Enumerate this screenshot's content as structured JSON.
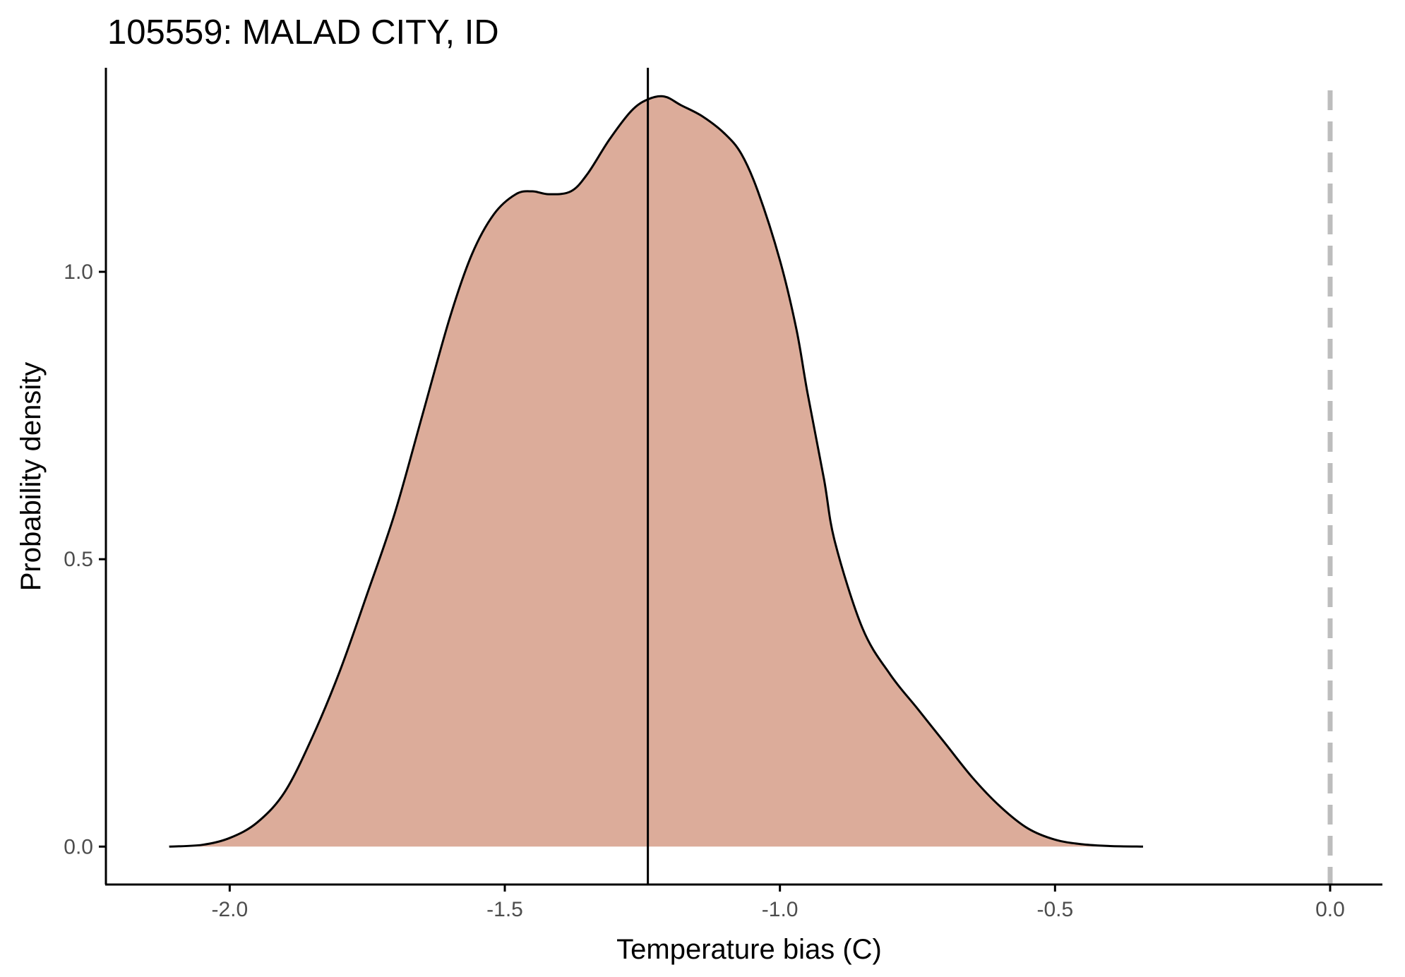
{
  "chart_data": {
    "type": "area",
    "title": "105559: MALAD CITY, ID",
    "xlabel": "Temperature bias (C)",
    "ylabel": "Probability density",
    "xlim": [
      -2.225,
      0.095
    ],
    "ylim": [
      -0.066,
      1.355
    ],
    "x_ticks": [
      -2.0,
      -1.5,
      -1.0,
      -0.5,
      0.0
    ],
    "x_tick_labels": [
      "-2.0",
      "-1.5",
      "-1.0",
      "-0.5",
      "0.0"
    ],
    "y_ticks": [
      0.0,
      0.5,
      1.0
    ],
    "y_tick_labels": [
      "0.0",
      "0.5",
      "1.0"
    ],
    "grid": false,
    "fill_color": "#dcac9a",
    "line_color": "#000000",
    "series": [
      {
        "x": [
          -2.11,
          -2.05,
          -2.0,
          -1.95,
          -1.9,
          -1.85,
          -1.8,
          -1.75,
          -1.7,
          -1.65,
          -1.6,
          -1.56,
          -1.52,
          -1.48,
          -1.45,
          -1.42,
          -1.38,
          -1.35,
          -1.31,
          -1.27,
          -1.24,
          -1.21,
          -1.18,
          -1.14,
          -1.1,
          -1.07,
          -1.04,
          -1.0,
          -0.97,
          -0.95,
          -0.92,
          -0.9,
          -0.85,
          -0.8,
          -0.75,
          -0.7,
          -0.65,
          -0.6,
          -0.55,
          -0.5,
          -0.45,
          -0.4,
          -0.34
        ],
        "y": [
          0.0,
          0.003,
          0.015,
          0.042,
          0.095,
          0.19,
          0.305,
          0.44,
          0.58,
          0.75,
          0.92,
          1.03,
          1.1,
          1.135,
          1.14,
          1.135,
          1.14,
          1.17,
          1.23,
          1.28,
          1.3,
          1.305,
          1.29,
          1.27,
          1.24,
          1.205,
          1.14,
          1.02,
          0.9,
          0.79,
          0.64,
          0.53,
          0.38,
          0.3,
          0.24,
          0.18,
          0.12,
          0.07,
          0.032,
          0.012,
          0.004,
          0.001,
          0.0
        ]
      }
    ],
    "annotations": [
      {
        "type": "vline",
        "x": -1.24,
        "style": "solid",
        "color": "#000000"
      },
      {
        "type": "vline",
        "x": 0.0,
        "style": "dashed",
        "color": "#bdbdbd"
      }
    ]
  }
}
